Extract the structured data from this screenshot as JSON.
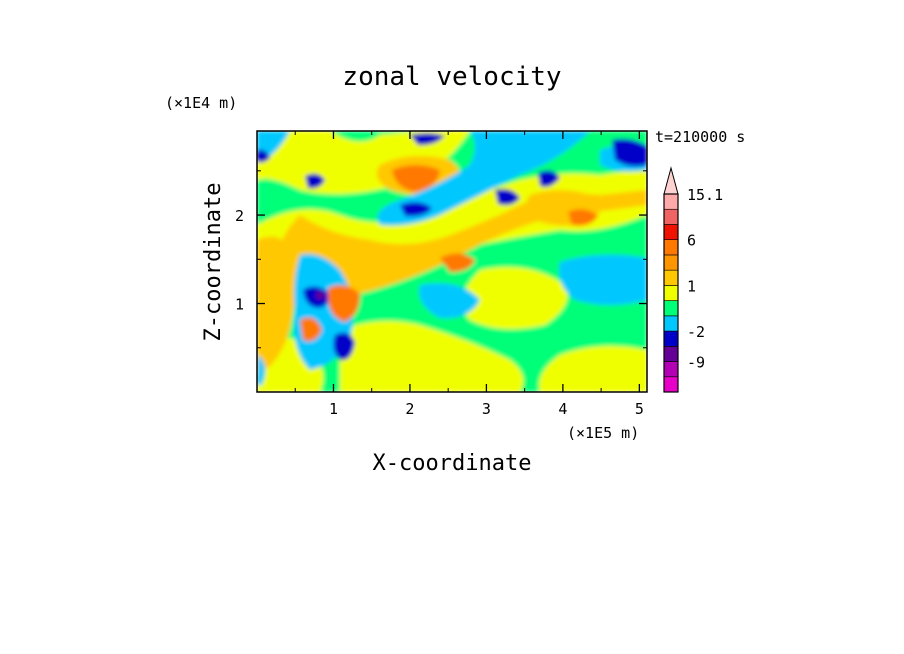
{
  "chart_data": {
    "type": "heatmap",
    "title": "zonal velocity",
    "xlabel": "X-coordinate",
    "ylabel": "Z-coordinate",
    "x_unit": "(×1E5 m)",
    "y_unit": "(×1E4 m)",
    "time_label": "t=210000 s",
    "xlim": [
      0,
      5.1
    ],
    "ylim": [
      0,
      2.95
    ],
    "x_ticks": [
      1,
      2,
      3,
      4,
      5
    ],
    "y_ticks": [
      1,
      2
    ],
    "colorbar": {
      "labels": [
        "15.1",
        "6",
        "1",
        "-2",
        "-9"
      ],
      "label_values": [
        15.1,
        6,
        1,
        -2,
        -9
      ],
      "range": [
        -15,
        21
      ],
      "extend": "max",
      "levels": [
        {
          "from": -15,
          "to": -12,
          "color": "#e600c8"
        },
        {
          "from": -12,
          "to": -9,
          "color": "#b400b4"
        },
        {
          "from": -9,
          "to": -6,
          "color": "#640096"
        },
        {
          "from": -6,
          "to": -2,
          "color": "#0000c8"
        },
        {
          "from": -2,
          "to": -1,
          "color": "#00c8ff"
        },
        {
          "from": -1,
          "to": 0,
          "color": "#00ff78"
        },
        {
          "from": 0,
          "to": 1,
          "color": "#f0ff00"
        },
        {
          "from": 1,
          "to": 2,
          "color": "#ffc800"
        },
        {
          "from": 2,
          "to": 3,
          "color": "#ff9600"
        },
        {
          "from": 3,
          "to": 6,
          "color": "#ff7800"
        },
        {
          "from": 6,
          "to": 9,
          "color": "#f01400"
        },
        {
          "from": 9,
          "to": 12,
          "color": "#f06464"
        },
        {
          "from": 12,
          "to": 15.1,
          "color": "#ffaaaa"
        },
        {
          "from": 15.1,
          "to": 18,
          "color": "#ffd2d2"
        }
      ]
    },
    "regions": [
      {
        "name": "background",
        "color": "#00ff78"
      },
      {
        "name": "yellow-band",
        "color": "#f0ff00"
      },
      {
        "name": "orange-band",
        "color": "#ffc800"
      },
      {
        "name": "cyan-band",
        "color": "#00c8ff"
      },
      {
        "name": "blue-core",
        "color": "#0000c8"
      },
      {
        "name": "red-core",
        "color": "#ff7800"
      },
      {
        "name": "purple-core",
        "color": "#640096"
      }
    ]
  }
}
